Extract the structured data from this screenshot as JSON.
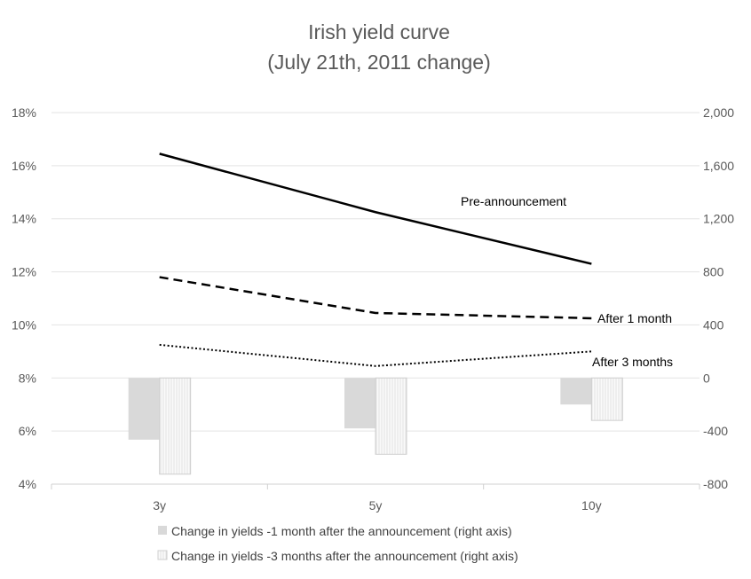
{
  "chart_data": {
    "type": "line",
    "title": "Irish yield curve",
    "subtitle": "(July 21th, 2011 change)",
    "categories": [
      "3y",
      "5y",
      "10y"
    ],
    "y_left": {
      "range": [
        4,
        18
      ],
      "ticks": [
        4,
        6,
        8,
        10,
        12,
        14,
        16,
        18
      ],
      "tick_labels": [
        "4%",
        "6%",
        "8%",
        "10%",
        "12%",
        "14%",
        "16%",
        "18%"
      ]
    },
    "y_right": {
      "range": [
        -800,
        2000
      ],
      "ticks": [
        -800,
        -400,
        0,
        400,
        800,
        1200,
        1600,
        2000
      ],
      "tick_labels": [
        "-800",
        "-400",
        "0",
        "400",
        "800",
        "1,200",
        "1,600",
        "2,000"
      ]
    },
    "grid": true,
    "legend_position": "bottom",
    "lines": [
      {
        "label": "Pre-announcement",
        "style": "solid",
        "values": [
          16.45,
          14.25,
          12.3
        ]
      },
      {
        "label": "After 1 month",
        "style": "dashed",
        "values": [
          11.8,
          10.45,
          10.25
        ]
      },
      {
        "label": "After 3 months",
        "style": "dotted",
        "values": [
          9.25,
          8.45,
          9.0
        ]
      }
    ],
    "bars": [
      {
        "name": "Change in yields -1 month after the announcement (right axis)",
        "fill": "#d9d9d9",
        "pattern": "solid",
        "values": [
          -465,
          -380,
          -200
        ]
      },
      {
        "name": "Change in yields -3 months after the announcement (right axis)",
        "fill": "#f2f2f2",
        "pattern": "vertical-lines",
        "values": [
          -725,
          -575,
          -320
        ]
      }
    ]
  }
}
